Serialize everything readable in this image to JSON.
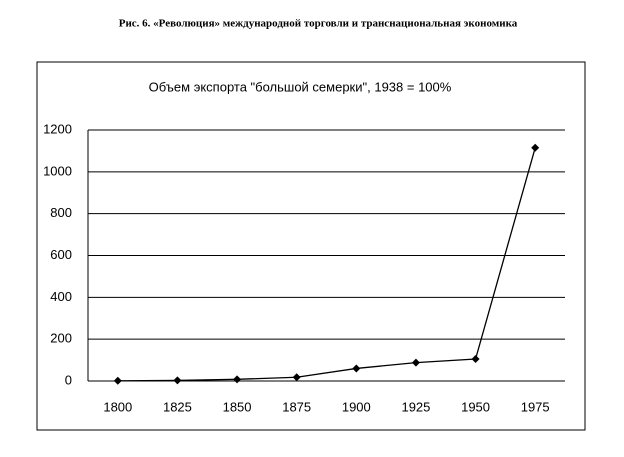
{
  "caption": "Рис. 6. «Революция» международной торговли и транснациональная экономика",
  "chart_data": {
    "type": "line",
    "title": "Объем экспорта \"большой семерки\", 1938 = 100%",
    "categories": [
      "1800",
      "1825",
      "1850",
      "1875",
      "1900",
      "1925",
      "1950",
      "1975"
    ],
    "values": [
      1,
      3,
      8,
      18,
      60,
      88,
      105,
      1115
    ],
    "color": "#000000",
    "ylim": [
      0,
      1200
    ],
    "yticks": [
      0,
      200,
      400,
      600,
      800,
      1000,
      1200
    ],
    "grid": true
  }
}
